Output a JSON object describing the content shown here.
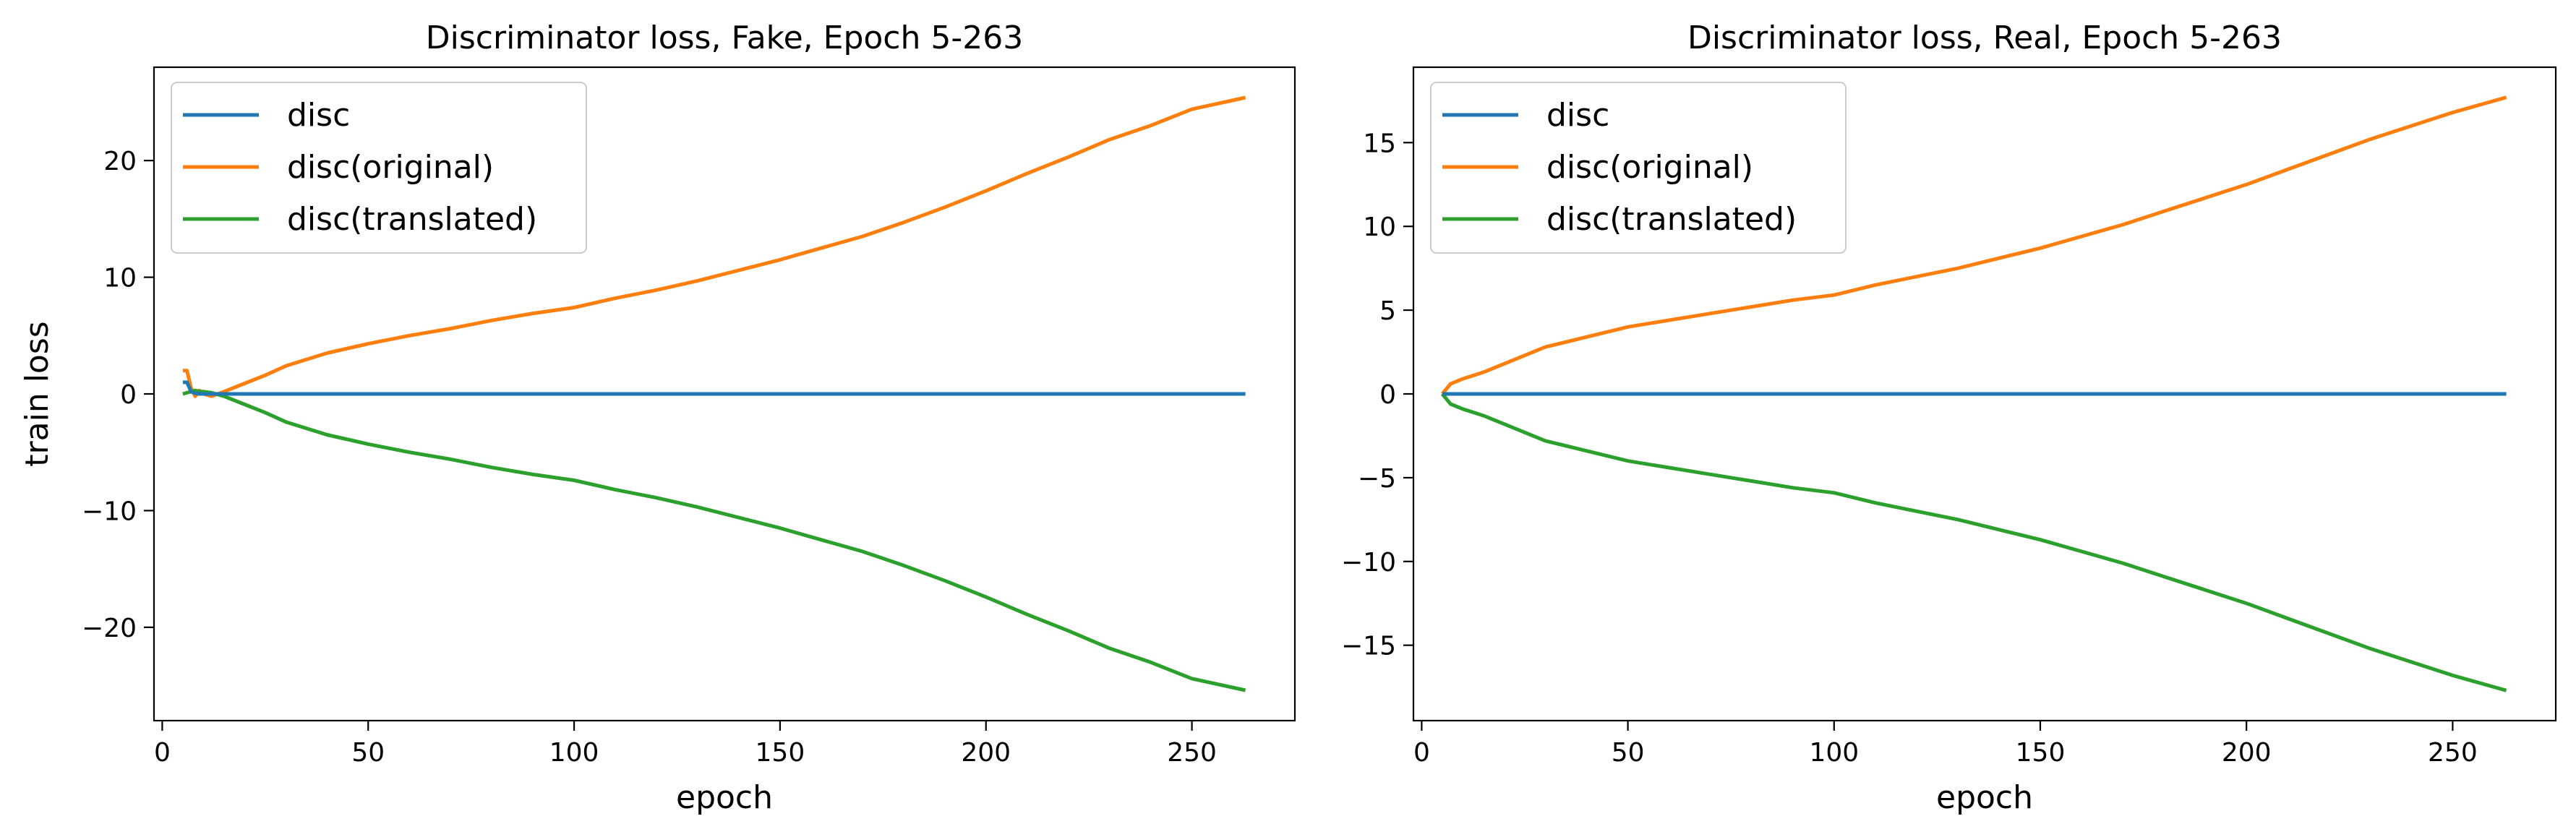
{
  "colors": {
    "disc": "#1f77b4",
    "disc_original": "#ff7f0e",
    "disc_translated": "#2ca02c"
  },
  "chart_data": [
    {
      "type": "line",
      "title": "Discriminator loss, Fake, Epoch 5-263",
      "xlabel": "epoch",
      "ylabel": "train loss",
      "xlim": [
        -2,
        275
      ],
      "ylim": [
        -28,
        28
      ],
      "xticks": [
        0,
        50,
        100,
        150,
        200,
        250
      ],
      "yticks": [
        -20,
        -10,
        0,
        10,
        20
      ],
      "xtick_labels": [
        "0",
        "50",
        "100",
        "150",
        "200",
        "250"
      ],
      "ytick_labels": [
        "−20",
        "−10",
        "0",
        "10",
        "20"
      ],
      "legend_position": "upper left",
      "grid": false,
      "series": [
        {
          "name": "disc",
          "color": "#1f77b4",
          "x": [
            5,
            6,
            7,
            8,
            9,
            10,
            20,
            263
          ],
          "y": [
            1.0,
            1.0,
            0.2,
            0.05,
            0.0,
            0.0,
            0.0,
            0.0
          ]
        },
        {
          "name": "disc(original)",
          "color": "#ff7f0e",
          "x": [
            5,
            6,
            7,
            8,
            9,
            10,
            12,
            15,
            20,
            25,
            30,
            40,
            50,
            60,
            70,
            80,
            90,
            100,
            110,
            120,
            130,
            140,
            150,
            160,
            170,
            180,
            190,
            200,
            210,
            220,
            230,
            240,
            250,
            263
          ],
          "y": [
            2.0,
            2.0,
            0.5,
            -0.2,
            0.3,
            0.0,
            -0.2,
            0.2,
            0.9,
            1.6,
            2.4,
            3.5,
            4.3,
            5.0,
            5.6,
            6.3,
            6.9,
            7.4,
            8.2,
            8.9,
            9.7,
            10.6,
            11.5,
            12.5,
            13.5,
            14.7,
            16.0,
            17.4,
            18.9,
            20.3,
            21.8,
            23.0,
            24.4,
            25.4
          ]
        },
        {
          "name": "disc(translated)",
          "color": "#2ca02c",
          "x": [
            5,
            6,
            7,
            8,
            9,
            10,
            12,
            15,
            20,
            25,
            30,
            40,
            50,
            60,
            70,
            80,
            90,
            100,
            110,
            120,
            130,
            140,
            150,
            160,
            170,
            180,
            190,
            200,
            210,
            220,
            230,
            240,
            250,
            263
          ],
          "y": [
            0.0,
            0.1,
            0.2,
            0.3,
            0.2,
            0.2,
            0.1,
            -0.2,
            -0.9,
            -1.6,
            -2.4,
            -3.5,
            -4.3,
            -5.0,
            -5.6,
            -6.3,
            -6.9,
            -7.4,
            -8.2,
            -8.9,
            -9.7,
            -10.6,
            -11.5,
            -12.5,
            -13.5,
            -14.7,
            -16.0,
            -17.4,
            -18.9,
            -20.3,
            -21.8,
            -23.0,
            -24.4,
            -25.4
          ]
        }
      ]
    },
    {
      "type": "line",
      "title": "Discriminator loss, Real, Epoch 5-263",
      "xlabel": "epoch",
      "ylabel": "",
      "xlim": [
        -2,
        275
      ],
      "ylim": [
        -19.5,
        19.5
      ],
      "xticks": [
        0,
        50,
        100,
        150,
        200,
        250
      ],
      "yticks": [
        -15,
        -10,
        -5,
        0,
        5,
        10,
        15
      ],
      "xtick_labels": [
        "0",
        "50",
        "100",
        "150",
        "200",
        "250"
      ],
      "ytick_labels": [
        "−15",
        "−10",
        "−5",
        "0",
        "5",
        "10",
        "15"
      ],
      "legend_position": "upper left",
      "grid": false,
      "series": [
        {
          "name": "disc",
          "color": "#1f77b4",
          "x": [
            5,
            263
          ],
          "y": [
            0.0,
            0.0
          ]
        },
        {
          "name": "disc(original)",
          "color": "#ff7f0e",
          "x": [
            5,
            7,
            10,
            15,
            20,
            25,
            30,
            40,
            50,
            60,
            70,
            80,
            90,
            100,
            110,
            120,
            130,
            140,
            150,
            160,
            170,
            180,
            190,
            200,
            210,
            220,
            230,
            240,
            250,
            263
          ],
          "y": [
            0.0,
            0.6,
            0.9,
            1.3,
            1.8,
            2.3,
            2.8,
            3.4,
            4.0,
            4.4,
            4.8,
            5.2,
            5.6,
            5.9,
            6.5,
            7.0,
            7.5,
            8.1,
            8.7,
            9.4,
            10.1,
            10.9,
            11.7,
            12.5,
            13.4,
            14.3,
            15.2,
            16.0,
            16.8,
            17.7
          ]
        },
        {
          "name": "disc(translated)",
          "color": "#2ca02c",
          "x": [
            5,
            7,
            10,
            15,
            20,
            25,
            30,
            40,
            50,
            60,
            70,
            80,
            90,
            100,
            110,
            120,
            130,
            140,
            150,
            160,
            170,
            180,
            190,
            200,
            210,
            220,
            230,
            240,
            250,
            263
          ],
          "y": [
            0.0,
            -0.6,
            -0.9,
            -1.3,
            -1.8,
            -2.3,
            -2.8,
            -3.4,
            -4.0,
            -4.4,
            -4.8,
            -5.2,
            -5.6,
            -5.9,
            -6.5,
            -7.0,
            -7.5,
            -8.1,
            -8.7,
            -9.4,
            -10.1,
            -10.9,
            -11.7,
            -12.5,
            -13.4,
            -14.3,
            -15.2,
            -16.0,
            -16.8,
            -17.7
          ]
        }
      ]
    }
  ]
}
